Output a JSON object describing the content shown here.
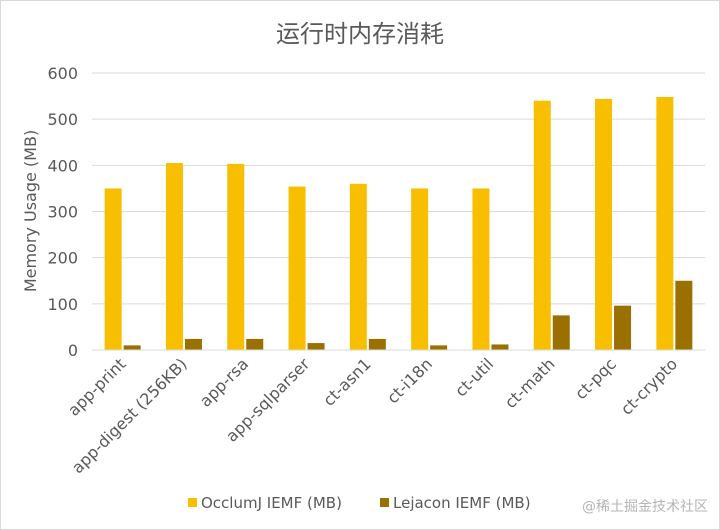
{
  "chart_data": {
    "type": "bar",
    "title": "运行时内存消耗",
    "xlabel": "",
    "ylabel": "Memory Usage (MB)",
    "ylim": [
      0,
      600
    ],
    "yticks": [
      0,
      100,
      200,
      300,
      400,
      500,
      600
    ],
    "grid": true,
    "legend_position": "bottom",
    "categories": [
      "app-print",
      "app-digest (256KB)",
      "app-rsa",
      "app-sqlparser",
      "ct-asn1",
      "ct-i18n",
      "ct-util",
      "ct-math",
      "ct-pqc",
      "ct-crypto"
    ],
    "series": [
      {
        "name": "OcclumJ IEMF (MB)",
        "color": "#f7bf00",
        "values": [
          350,
          405,
          403,
          354,
          360,
          350,
          350,
          540,
          544,
          548
        ]
      },
      {
        "name": "Lejacon IEMF (MB)",
        "color": "#9a7100",
        "values": [
          10,
          24,
          24,
          15,
          24,
          10,
          12,
          75,
          96,
          150
        ]
      }
    ]
  },
  "watermark": "@稀土掘金技术社区"
}
